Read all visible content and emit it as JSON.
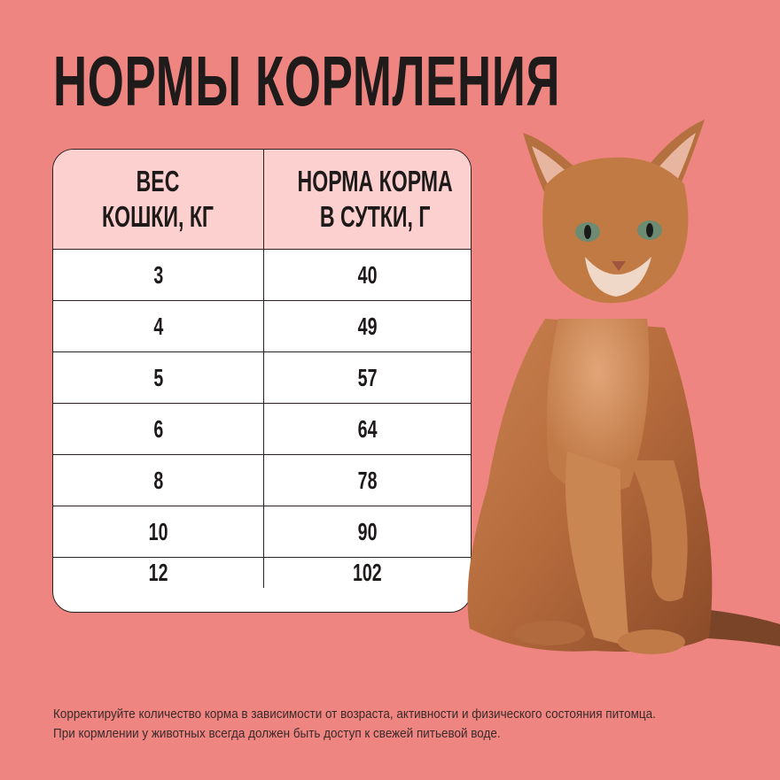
{
  "title": "НОРМЫ КОРМЛЕНИЯ",
  "table": {
    "headers": [
      "ВЕС\nКОШКИ, КГ",
      "НОРМА КОРМА\nВ СУТКИ, Г"
    ],
    "header_lines": [
      [
        "ВЕС",
        "КОШКИ, КГ"
      ],
      [
        "НОРМА КОРМА",
        "В СУТКИ, Г"
      ]
    ],
    "rows": [
      [
        "3",
        "40"
      ],
      [
        "4",
        "49"
      ],
      [
        "5",
        "57"
      ],
      [
        "6",
        "64"
      ],
      [
        "8",
        "78"
      ],
      [
        "10",
        "90"
      ],
      [
        "12",
        "102"
      ]
    ]
  },
  "note": {
    "line1": "Корректируйте количество корма в зависимости от возраста, активности и физического состояния питомца.",
    "line2": "При кормлении у животных всегда должен быть доступ к свежей питьевой воде."
  },
  "colors": {
    "background": "#ee8581",
    "header": "#fdd0d0",
    "text": "#1f1b1b"
  }
}
